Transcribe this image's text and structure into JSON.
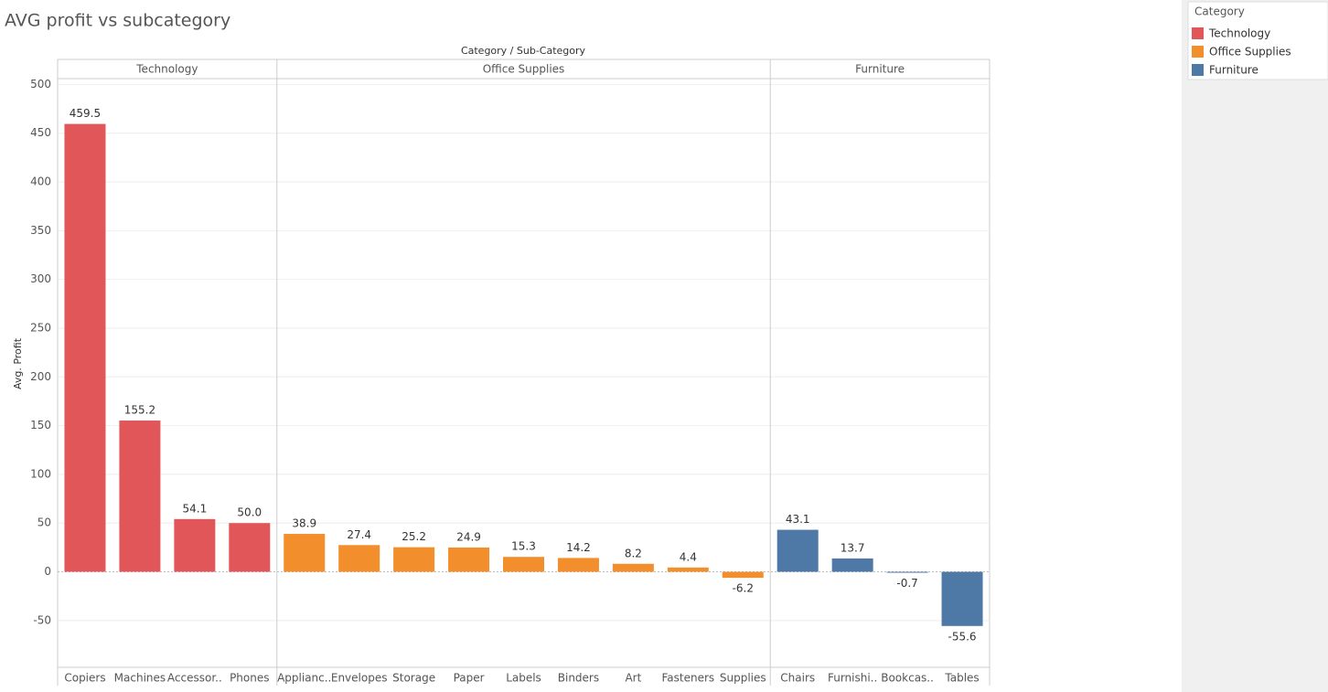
{
  "chart_data": {
    "type": "bar",
    "title": "AVG profit vs subcategory",
    "x_label": "Category / Sub-Category",
    "y_label": "Avg. Profit",
    "legend_title": "Category",
    "legend": "right",
    "grid": true,
    "ylim": [
      -98,
      506
    ],
    "yticks": [
      -50,
      0,
      50,
      100,
      150,
      200,
      250,
      300,
      350,
      400,
      450,
      500
    ],
    "series": [
      {
        "name": "Technology",
        "color": "#e15759",
        "categories": [
          "Copiers",
          "Machines",
          "Accessor..",
          "Phones"
        ],
        "values": [
          459.5,
          155.2,
          54.1,
          50.0
        ],
        "value_labels": [
          "459.5",
          "155.2",
          "54.1",
          "50.0"
        ]
      },
      {
        "name": "Office Supplies",
        "color": "#f28e2b",
        "categories": [
          "Applianc..",
          "Envelopes",
          "Storage",
          "Paper",
          "Labels",
          "Binders",
          "Art",
          "Fasteners",
          "Supplies"
        ],
        "values": [
          38.9,
          27.4,
          25.2,
          24.9,
          15.3,
          14.2,
          8.2,
          4.4,
          -6.2
        ],
        "value_labels": [
          "38.9",
          "27.4",
          "25.2",
          "24.9",
          "15.3",
          "14.2",
          "8.2",
          "4.4",
          "-6.2"
        ]
      },
      {
        "name": "Furniture",
        "color": "#4e79a7",
        "categories": [
          "Chairs",
          "Furnishi..",
          "Bookcas..",
          "Tables"
        ],
        "values": [
          43.1,
          13.7,
          -0.7,
          -55.6
        ],
        "value_labels": [
          "43.1",
          "13.7",
          "-0.7",
          "-55.6"
        ]
      }
    ]
  }
}
